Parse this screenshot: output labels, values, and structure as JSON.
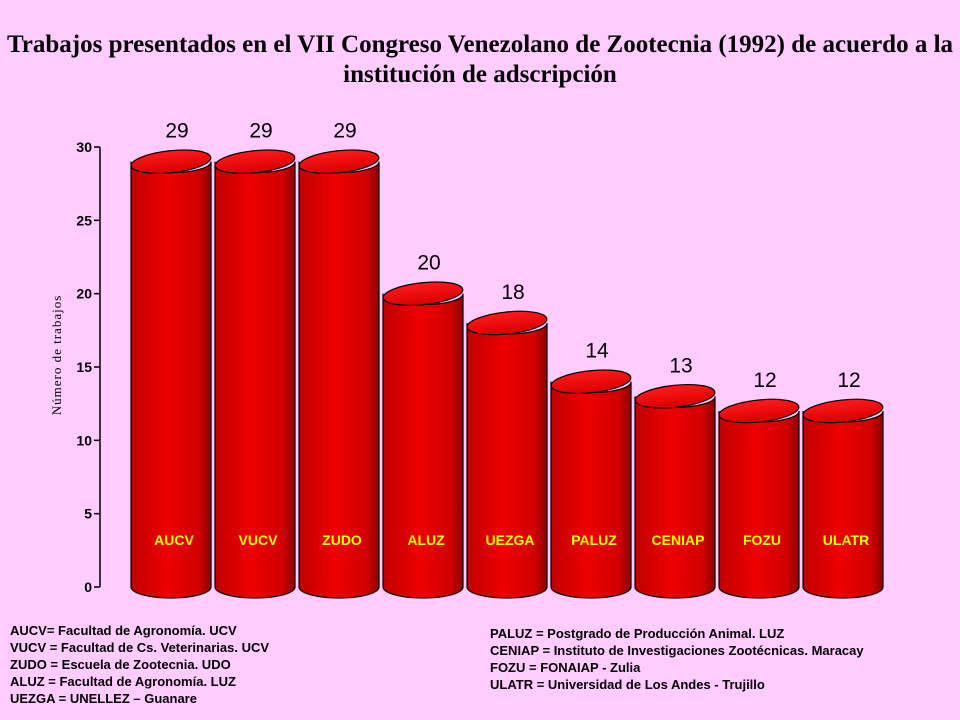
{
  "chart_data": {
    "type": "bar",
    "title": "Trabajos presentados en el VII Congreso Venezolano de Zootecnia (1992) de acuerdo a la institución de adscripción",
    "ylabel": "Número de trabajos",
    "xlabel": "",
    "categories": [
      "AUCV",
      "VUCV",
      "ZUDO",
      "ALUZ",
      "UEZGA",
      "PALUZ",
      "CENIAP",
      "FOZU",
      "ULATR"
    ],
    "values": [
      29,
      29,
      29,
      20,
      18,
      14,
      13,
      12,
      12
    ],
    "data_labels": [
      "29",
      "29",
      "29",
      "20",
      "18",
      "14",
      "13",
      "12",
      "12"
    ],
    "ylim": [
      0,
      30
    ],
    "yticks": [
      "0",
      "5",
      "10",
      "15",
      "20",
      "25",
      "30"
    ],
    "grid": false,
    "bar_color": "#e60000",
    "category_label_color": "#ffff00"
  },
  "legend_left": [
    "AUCV= Facultad de Agronomía. UCV",
    "VUCV = Facultad de Cs. Veterinarias. UCV",
    "ZUDO = Escuela de Zootecnia.  UDO",
    "ALUZ = Facultad de Agronomía.  LUZ",
    "UEZGA = UNELLEZ – Guanare"
  ],
  "legend_right": [
    "PALUZ = Postgrado de Producción  Animal. LUZ",
    "CENIAP = Instituto de Investigaciones Zootécnicas.  Maracay",
    "FOZU = FONAIAP - Zulia",
    "ULATR = Universidad de Los Andes - Trujillo"
  ]
}
